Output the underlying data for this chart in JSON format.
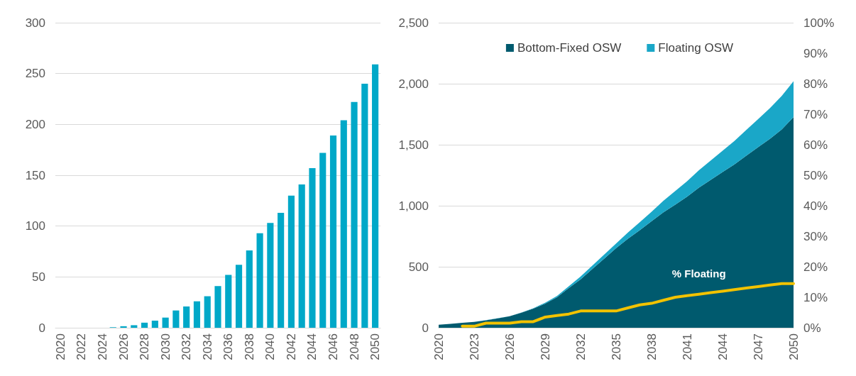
{
  "chart_data": [
    {
      "type": "bar",
      "categories": [
        "2020",
        null,
        "2022",
        null,
        "2024",
        null,
        "2026",
        null,
        "2028",
        null,
        "2030",
        null,
        "2032",
        null,
        "2034",
        null,
        "2036",
        null,
        "2038",
        null,
        "2040",
        null,
        "2042",
        null,
        "2044",
        null,
        "2046",
        null,
        "2048",
        null,
        "2050"
      ],
      "values": [
        null,
        null,
        null,
        null,
        null,
        0.5,
        1.5,
        2.5,
        5,
        7,
        10,
        17,
        21,
        26,
        31,
        41,
        52,
        62,
        76,
        93,
        103,
        113,
        130,
        141,
        157,
        172,
        189,
        204,
        222,
        240,
        259
      ],
      "color": "#00a8c8",
      "ylim": [
        0,
        300
      ],
      "yticks": [
        0,
        50,
        100,
        150,
        200,
        250,
        300
      ],
      "grid": "y"
    },
    {
      "type": "area",
      "stacked": true,
      "legend": "top",
      "grid": "y",
      "categories": [
        "2020",
        null,
        null,
        "2023",
        null,
        null,
        "2026",
        null,
        null,
        "2029",
        null,
        null,
        "2032",
        null,
        null,
        "2035",
        null,
        null,
        "2038",
        null,
        null,
        "2041",
        null,
        null,
        "2044",
        null,
        null,
        "2047",
        null,
        null,
        "2050"
      ],
      "series": [
        {
          "name": "Bottom-Fixed OSW",
          "color": "#005a6e",
          "values": [
            25,
            32,
            40,
            48,
            61,
            77,
            94,
            123,
            157,
            198,
            250,
            325,
            397,
            482,
            567,
            652,
            730,
            800,
            874,
            946,
            1008,
            1074,
            1148,
            1212,
            1276,
            1339,
            1410,
            1479,
            1548,
            1625,
            1727
          ]
        },
        {
          "name": "Floating OSW",
          "color": "#1aa7c8",
          "values": [
            0,
            0,
            0,
            0,
            1,
            1,
            1,
            2,
            3,
            7,
            10,
            15,
            23,
            28,
            33,
            38,
            50,
            65,
            76,
            94,
            112,
            126,
            142,
            158,
            174,
            191,
            210,
            231,
            252,
            275,
            293
          ]
        },
        {
          "name": "% Floating",
          "type": "line",
          "axis": "y2",
          "color": "#f2c200",
          "marker": "none",
          "line_style": "solid",
          "values": [
            null,
            null,
            0.5,
            0.5,
            1.5,
            1.5,
            1.5,
            2,
            2,
            3.5,
            4,
            4.5,
            5.5,
            5.5,
            5.5,
            5.5,
            6.5,
            7.5,
            8,
            9,
            10,
            10.5,
            11,
            11.5,
            12,
            12.5,
            13,
            13.5,
            14,
            14.5,
            14.5
          ]
        }
      ],
      "ylim": [
        0,
        2500
      ],
      "yticks": [
        0,
        {
          "value": 500,
          "label": "500"
        },
        {
          "value": 1000,
          "label": "1,000"
        },
        {
          "value": 1500,
          "label": "1,500"
        },
        {
          "value": 2000,
          "label": "2,000"
        },
        {
          "value": 2500,
          "label": "2,500"
        }
      ],
      "y2lim": [
        0,
        100
      ],
      "y2ticks": [
        {
          "value": 0,
          "label": "0%"
        },
        {
          "value": 10,
          "label": "10%"
        },
        {
          "value": 20,
          "label": "20%"
        },
        {
          "value": 30,
          "label": "30%"
        },
        {
          "value": 40,
          "label": "40%"
        },
        {
          "value": 50,
          "label": "50%"
        },
        {
          "value": 60,
          "label": "60%"
        },
        {
          "value": 70,
          "label": "70%"
        },
        {
          "value": 80,
          "label": "80%"
        },
        {
          "value": 90,
          "label": "90%"
        },
        {
          "value": 100,
          "label": "100%"
        }
      ]
    }
  ]
}
